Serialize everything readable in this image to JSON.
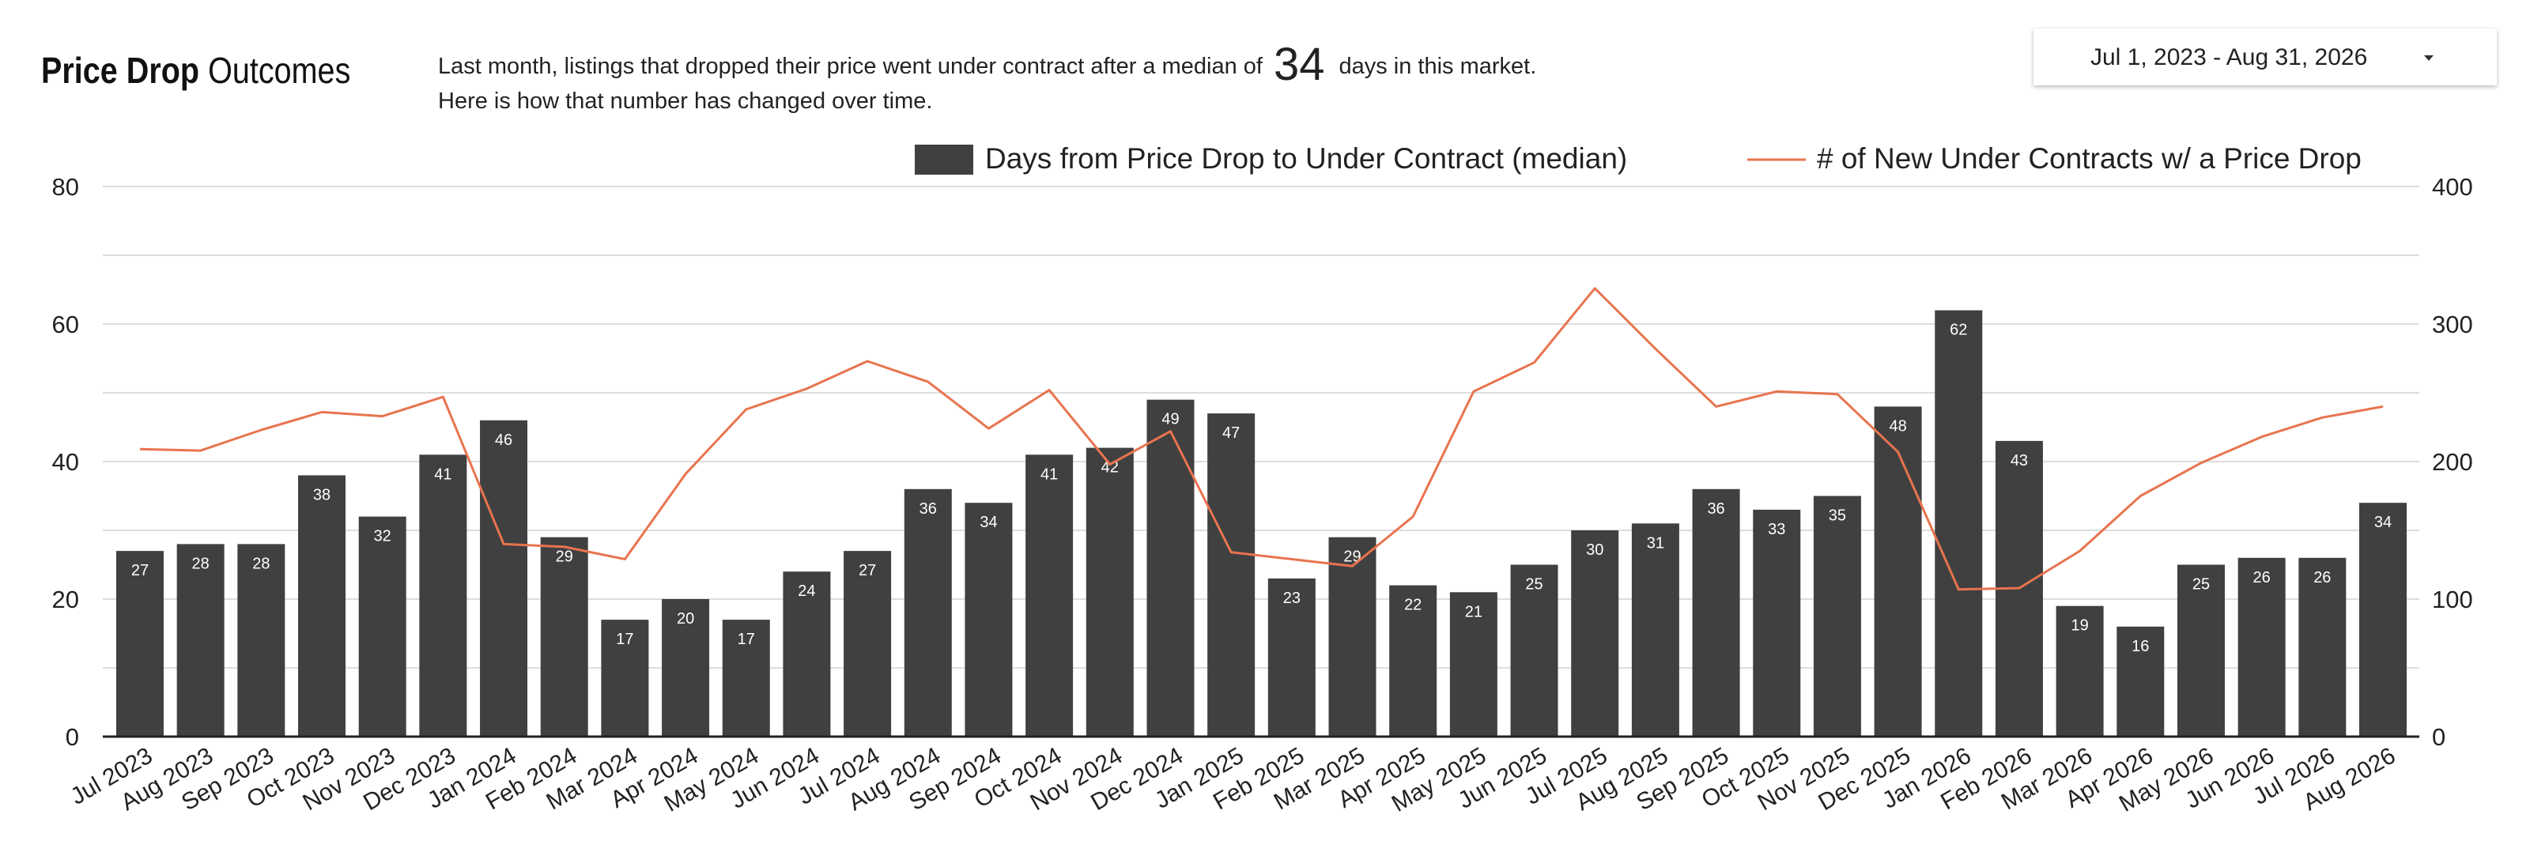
{
  "header": {
    "title_bold": "Price Drop",
    "title_rest": "Outcomes",
    "subtitle_line1_before": "Last month,  listings that dropped their price went under contract after a median of",
    "subtitle_highlight": "34",
    "subtitle_line1_after": "days in this market.",
    "subtitle_line2": "Here is how that number has changed over time."
  },
  "date_picker": {
    "label": "Jul 1, 2023 - Aug 31, 2026",
    "icon": "chevron-down-icon"
  },
  "colors": {
    "bar": "#404040",
    "line": "#e8744f",
    "grid": "#dddddd",
    "axis": "#222222",
    "bar_label": "#ffffff"
  },
  "chart_data": {
    "type": "bar",
    "legend_position": "top-right",
    "grid": true,
    "categories": [
      "Jul 2023",
      "Aug 2023",
      "Sep 2023",
      "Oct 2023",
      "Nov 2023",
      "Dec 2023",
      "Jan 2024",
      "Feb 2024",
      "Mar 2024",
      "Apr 2024",
      "May 2024",
      "Jun 2024",
      "Jul 2024",
      "Aug 2024",
      "Sep 2024",
      "Oct 2024",
      "Nov 2024",
      "Dec 2024",
      "Jan 2025",
      "Feb 2025",
      "Mar 2025",
      "Apr 2025",
      "May 2025",
      "Jun 2025",
      "Jul 2025",
      "Aug 2025",
      "Sep 2025",
      "Oct 2025",
      "Nov 2025",
      "Dec 2025",
      "Jan 2026",
      "Feb 2026",
      "Mar 2026",
      "Apr 2026",
      "May 2026",
      "Jun 2026",
      "Jul 2026",
      "Aug 2026"
    ],
    "series": [
      {
        "name": "Days from Price Drop to Under Contract (median)",
        "type": "bar",
        "axis": "left",
        "values": [
          27,
          28,
          28,
          38,
          32,
          41,
          46,
          29,
          17,
          20,
          17,
          24,
          27,
          36,
          34,
          41,
          42,
          49,
          47,
          23,
          29,
          22,
          21,
          25,
          30,
          31,
          36,
          33,
          35,
          48,
          62,
          43,
          19,
          16,
          25,
          26,
          26,
          34
        ]
      },
      {
        "name": "# of New Under Contracts w/ a Price Drop",
        "type": "line",
        "axis": "right",
        "values": [
          209,
          208,
          223,
          236,
          233,
          247,
          140,
          138,
          129,
          191,
          238,
          253,
          273,
          258,
          224,
          252,
          198,
          222,
          134,
          129,
          124,
          160,
          251,
          272,
          326,
          282,
          240,
          251,
          249,
          207,
          107,
          108,
          135,
          175,
          199,
          218,
          232,
          240
        ]
      }
    ],
    "y_left": {
      "min": 0,
      "max": 80,
      "ticks": [
        "0",
        "20",
        "40",
        "60",
        "80"
      ]
    },
    "y_right": {
      "min": 0,
      "max": 400,
      "ticks": [
        "0",
        "100",
        "200",
        "300",
        "400"
      ]
    }
  }
}
